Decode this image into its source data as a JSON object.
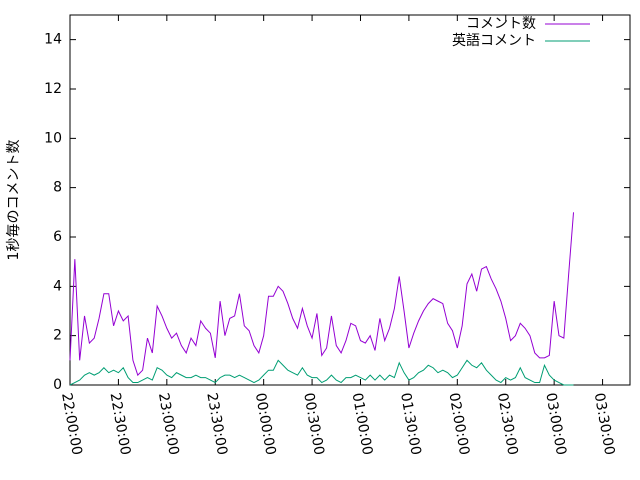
{
  "chart_data": {
    "type": "line",
    "ylabel": "1秒毎のコメント数",
    "x": [
      0,
      3,
      6,
      9,
      12,
      15,
      18,
      21,
      24,
      27,
      30,
      33,
      36,
      39,
      42,
      45,
      48,
      51,
      54,
      57,
      60,
      63,
      66,
      69,
      72,
      75,
      78,
      81,
      84,
      87,
      90,
      93,
      96,
      99,
      102,
      105,
      108,
      111,
      114,
      117,
      120,
      123,
      126,
      129,
      132,
      135,
      138,
      141,
      144,
      147,
      150,
      153,
      156,
      159,
      162,
      165,
      168,
      171,
      174,
      177,
      180,
      183,
      186,
      189,
      192,
      195,
      198,
      201,
      204,
      207,
      210,
      213,
      216,
      219,
      222,
      225,
      228,
      231,
      234,
      237,
      240,
      243,
      246,
      249,
      252,
      255,
      258,
      261,
      264,
      267,
      270,
      273,
      276,
      279,
      282,
      285,
      288,
      291,
      294,
      297,
      300,
      303,
      306,
      309,
      312
    ],
    "series": [
      {
        "name": "コメント数",
        "color": "#9400d3",
        "values": [
          1.0,
          5.1,
          1.0,
          2.8,
          1.7,
          1.9,
          2.7,
          3.7,
          3.7,
          2.4,
          3.0,
          2.6,
          2.8,
          1.0,
          0.4,
          0.6,
          1.9,
          1.3,
          3.2,
          2.8,
          2.3,
          1.9,
          2.1,
          1.6,
          1.3,
          1.9,
          1.6,
          2.6,
          2.3,
          2.1,
          1.1,
          3.4,
          2.0,
          2.7,
          2.8,
          3.7,
          2.4,
          2.2,
          1.6,
          1.3,
          2.0,
          3.6,
          3.6,
          4.0,
          3.8,
          3.3,
          2.7,
          2.3,
          3.1,
          2.4,
          1.9,
          2.9,
          1.2,
          1.5,
          2.8,
          1.6,
          1.3,
          1.8,
          2.5,
          2.4,
          1.8,
          1.7,
          2.0,
          1.4,
          2.7,
          1.8,
          2.3,
          3.1,
          4.4,
          3.0,
          1.5,
          2.1,
          2.6,
          3.0,
          3.3,
          3.5,
          3.4,
          3.3,
          2.5,
          2.2,
          1.5,
          2.4,
          4.1,
          4.5,
          3.8,
          4.7,
          4.8,
          4.3,
          3.9,
          3.4,
          2.7,
          1.8,
          2.0,
          2.5,
          2.3,
          2.0,
          1.3,
          1.1,
          1.1,
          1.2,
          3.4,
          2.0,
          1.9,
          4.5,
          7.0
        ]
      },
      {
        "name": "英語コメント",
        "color": "#009e73",
        "values": [
          0,
          0.1,
          0.2,
          0.4,
          0.5,
          0.4,
          0.5,
          0.7,
          0.5,
          0.6,
          0.5,
          0.7,
          0.3,
          0.1,
          0.1,
          0.2,
          0.3,
          0.2,
          0.7,
          0.6,
          0.4,
          0.3,
          0.5,
          0.4,
          0.3,
          0.3,
          0.4,
          0.3,
          0.3,
          0.2,
          0.1,
          0.3,
          0.4,
          0.4,
          0.3,
          0.4,
          0.3,
          0.2,
          0.1,
          0.2,
          0.4,
          0.6,
          0.6,
          1.0,
          0.8,
          0.6,
          0.5,
          0.4,
          0.7,
          0.4,
          0.3,
          0.3,
          0.1,
          0.2,
          0.4,
          0.2,
          0.1,
          0.3,
          0.3,
          0.4,
          0.3,
          0.2,
          0.4,
          0.2,
          0.4,
          0.2,
          0.4,
          0.3,
          0.9,
          0.5,
          0.2,
          0.3,
          0.5,
          0.6,
          0.8,
          0.7,
          0.5,
          0.6,
          0.5,
          0.3,
          0.4,
          0.7,
          1.0,
          0.8,
          0.7,
          0.9,
          0.6,
          0.4,
          0.2,
          0.1,
          0.3,
          0.2,
          0.3,
          0.7,
          0.3,
          0.2,
          0.1,
          0.1,
          0.8,
          0.4,
          0.2,
          0.1,
          0.0,
          0.0,
          0.0
        ]
      }
    ],
    "xlim": [
      0,
      347
    ],
    "xticks": [
      {
        "value": 0,
        "label": "22:00:00"
      },
      {
        "value": 30,
        "label": "22:30:00"
      },
      {
        "value": 60,
        "label": "23:00:00"
      },
      {
        "value": 90,
        "label": "23:30:00"
      },
      {
        "value": 120,
        "label": "00:00:00"
      },
      {
        "value": 150,
        "label": "00:30:00"
      },
      {
        "value": 180,
        "label": "01:00:00"
      },
      {
        "value": 210,
        "label": "01:30:00"
      },
      {
        "value": 240,
        "label": "02:00:00"
      },
      {
        "value": 270,
        "label": "02:30:00"
      },
      {
        "value": 300,
        "label": "03:00:00"
      },
      {
        "value": 330,
        "label": "03:30:00"
      }
    ],
    "ylim": [
      0,
      15
    ],
    "yticks": [
      0,
      2,
      4,
      6,
      8,
      10,
      12,
      14
    ],
    "legend": "top-right"
  }
}
